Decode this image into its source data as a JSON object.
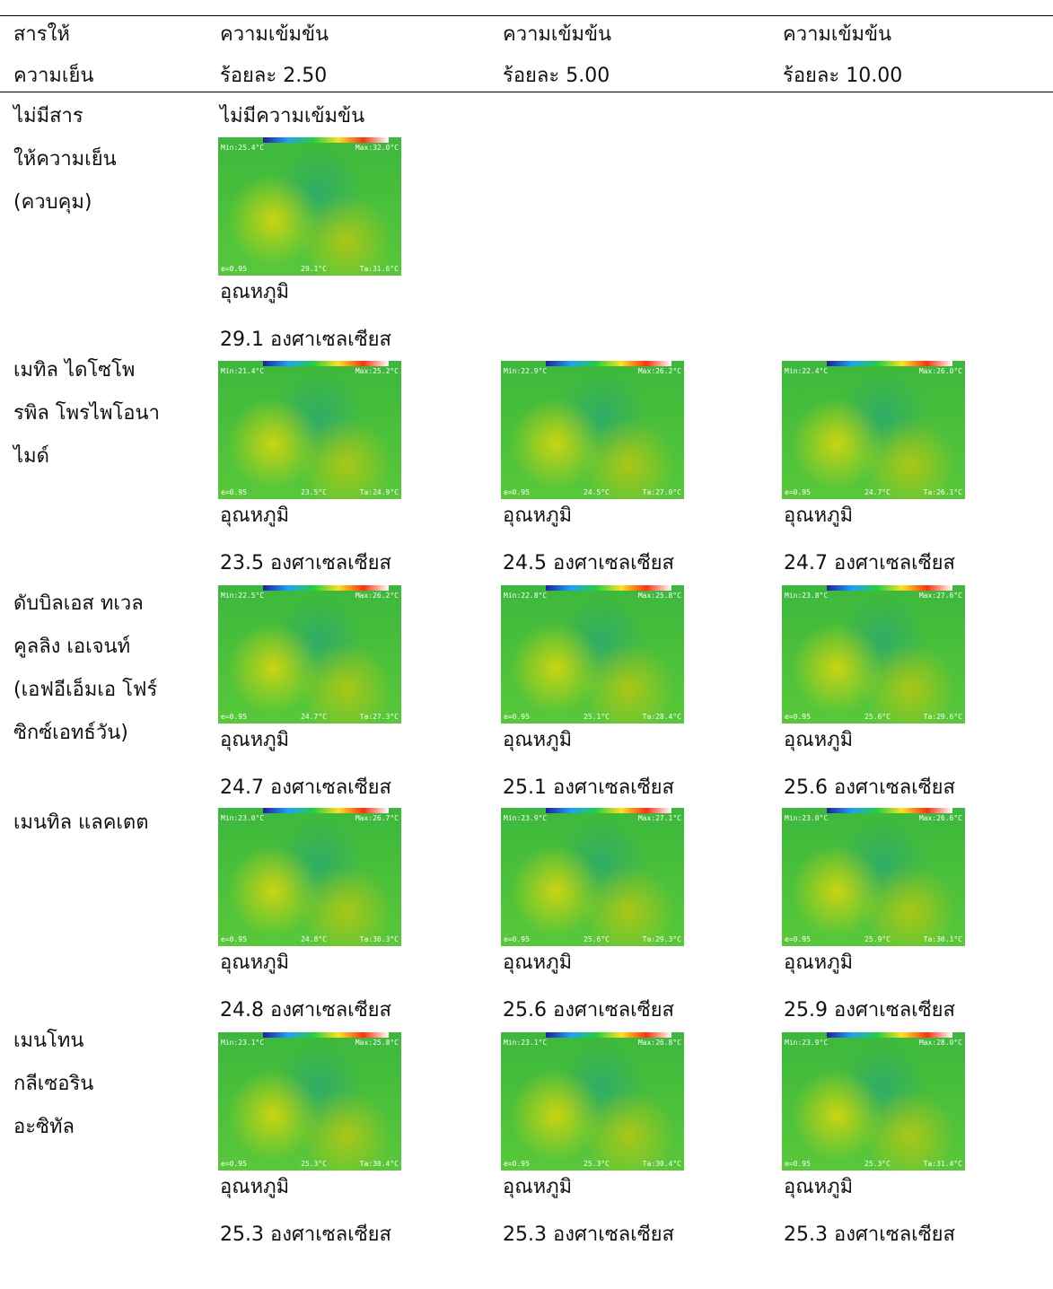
{
  "header": {
    "columns": [
      [
        "สารให้",
        "ความเย็น"
      ],
      [
        "ความเข้มข้น",
        "ร้อยละ 2.50"
      ],
      [
        "ความเข้มข้น",
        "ร้อยละ 5.00"
      ],
      [
        "ความเข้มข้น",
        "ร้อยละ 10.00"
      ]
    ]
  },
  "rows": [
    {
      "label": [
        "ไม่มีสาร",
        "ให้ความเย็น",
        "(ควบคุม)"
      ],
      "note": "ไม่มีความเข้มข้น",
      "cells": [
        {
          "image": {
            "min": "Min:25.4°C",
            "max": "Max:32.0°C",
            "e": "e=0.95",
            "center": "29.1°C",
            "ta": "Ta:31.6°C"
          },
          "caption": "อุณหภูมิ",
          "temperature": "29.1 องศาเซลเซียส"
        }
      ]
    },
    {
      "label": [
        "เมทิล ไดโซโพ",
        "รพิล โพรไพโอนา",
        "ไมด์"
      ],
      "cells": [
        {
          "image": {
            "min": "Min:21.4°C",
            "max": "Max:25.2°C",
            "e": "e=0.95",
            "center": "23.5°C",
            "ta": "Ta:24.9°C"
          },
          "caption": "อุณหภูมิ",
          "temperature": "23.5 องศาเซลเซียส"
        },
        {
          "image": {
            "min": "Min:22.9°C",
            "max": "Max:26.2°C",
            "e": "e=0.95",
            "center": "24.5°C",
            "ta": "Ta:27.0°C"
          },
          "caption": "อุณหภูมิ",
          "temperature": "24.5 องศาเซลเซียส"
        },
        {
          "image": {
            "min": "Min:22.4°C",
            "max": "Max:26.0°C",
            "e": "e=0.95",
            "center": "24.7°C",
            "ta": "Ta:26.1°C"
          },
          "caption": "อุณหภูมิ",
          "temperature": "24.7 องศาเซลเซียส"
        }
      ]
    },
    {
      "label": [
        "ดับบิลเอส ทเวล",
        "คูลลิง เอเจนท์",
        "(เอฟอีเอ็มเอ โฟร์",
        "ซิกซ์เอทธ์วัน)"
      ],
      "cells": [
        {
          "image": {
            "min": "Min:22.5°C",
            "max": "Max:26.2°C",
            "e": "e=0.95",
            "center": "24.7°C",
            "ta": "Ta:27.3°C"
          },
          "caption": "อุณหภูมิ",
          "temperature": "24.7 องศาเซลเซียส"
        },
        {
          "image": {
            "min": "Min:22.8°C",
            "max": "Max:25.8°C",
            "e": "e=0.95",
            "center": "25.1°C",
            "ta": "Ta:28.4°C"
          },
          "caption": "อุณหภูมิ",
          "temperature": "25.1 องศาเซลเซียส"
        },
        {
          "image": {
            "min": "Min:23.8°C",
            "max": "Max:27.6°C",
            "e": "e=0.95",
            "center": "25.6°C",
            "ta": "Ta:29.6°C"
          },
          "caption": "อุณหภูมิ",
          "temperature": "25.6 องศาเซลเซียส"
        }
      ]
    },
    {
      "label": [
        "เมนทิล แลคเตต"
      ],
      "cells": [
        {
          "image": {
            "min": "Min:23.0°C",
            "max": "Max:26.7°C",
            "e": "e=0.95",
            "center": "24.8°C",
            "ta": "Ta:30.3°C"
          },
          "caption": "อุณหภูมิ",
          "temperature": "24.8 องศาเซลเซียส"
        },
        {
          "image": {
            "min": "Min:23.9°C",
            "max": "Max:27.1°C",
            "e": "e=0.95",
            "center": "25.6°C",
            "ta": "Ta:29.3°C"
          },
          "caption": "อุณหภูมิ",
          "temperature": "25.6 องศาเซลเซียส"
        },
        {
          "image": {
            "min": "Min:23.0°C",
            "max": "Max:26.6°C",
            "e": "e=0.95",
            "center": "25.9°C",
            "ta": "Ta:30.1°C"
          },
          "caption": "อุณหภูมิ",
          "temperature": "25.9 องศาเซลเซียส"
        }
      ]
    },
    {
      "label": [
        "เมนโทน",
        "กลีเซอริน",
        "อะซิทัล"
      ],
      "cells": [
        {
          "image": {
            "min": "Min:23.1°C",
            "max": "Max:25.8°C",
            "e": "e=0.95",
            "center": "25.3°C",
            "ta": "Ta:30.4°C"
          },
          "caption": "อุณหภูมิ",
          "temperature": "25.3 องศาเซลเซียส"
        },
        {
          "image": {
            "min": "Min:23.1°C",
            "max": "Max:26.8°C",
            "e": "e=0.95",
            "center": "25.3°C",
            "ta": "Ta:30.4°C"
          },
          "caption": "อุณหภูมิ",
          "temperature": "25.3 องศาเซลเซียส"
        },
        {
          "image": {
            "min": "Min:23.9°C",
            "max": "Max:28.0°C",
            "e": "e=0.95",
            "center": "25.3°C",
            "ta": "Ta:31.4°C"
          },
          "caption": "อุณหภูมิ",
          "temperature": "25.3 องศาเซลเซียส"
        }
      ]
    }
  ]
}
